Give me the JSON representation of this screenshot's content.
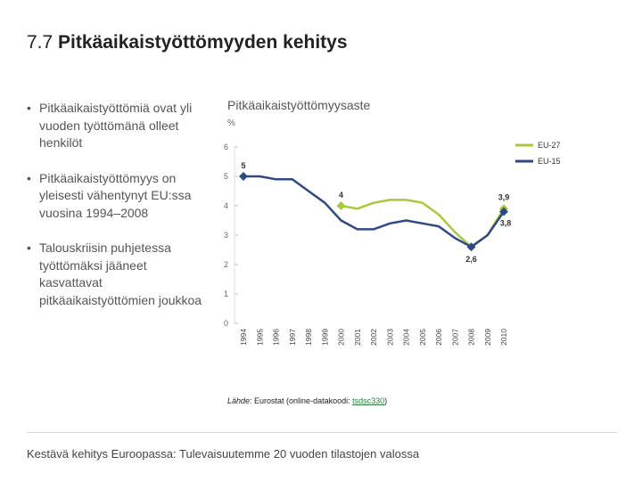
{
  "slide": {
    "title_number": "7.7",
    "title_text": "Pitkäaikaistyöttömyyden kehitys",
    "bullets": [
      "Pitkäaikaistyöttömiä ovat yli vuoden työttömänä olleet henkilöt",
      "Pitkäaikaistyöttömyys on yleisesti vähentynyt EU:ssa vuosina 1994–2008",
      "Talouskriisin puhjetessa työttömäksi jääneet kasvattavat pitkäaikaistyöttömien joukkoa"
    ],
    "footer": "Kestävä kehitys Euroopassa: Tulevaisuutemme 20 vuoden tilastojen valossa"
  },
  "source": {
    "label": "Lähde",
    "text": ": Eurostat (online-datakoodi: ",
    "code": "tsdsc330",
    "close": ")"
  },
  "colors": {
    "eu27": "#a8c83c",
    "eu15": "#2d4a86",
    "axis": "#cccccc",
    "text": "#555555"
  },
  "chart_data": {
    "type": "line",
    "title": "Pitkäaikaistyöttömyysaste",
    "ylabel": "%",
    "ylim": [
      0,
      6
    ],
    "yticks": [
      0,
      1,
      2,
      3,
      4,
      5,
      6
    ],
    "x": [
      "1994",
      "1995",
      "1996",
      "1997",
      "1998",
      "1999",
      "2000",
      "2001",
      "2002",
      "2003",
      "2004",
      "2005",
      "2006",
      "2007",
      "2008",
      "2009",
      "2010"
    ],
    "series": [
      {
        "name": "EU-27",
        "color": "#a8c83c",
        "values": [
          null,
          null,
          null,
          null,
          null,
          null,
          4.0,
          3.9,
          4.1,
          4.2,
          4.2,
          4.1,
          3.7,
          3.1,
          2.6,
          3.0,
          3.9
        ]
      },
      {
        "name": "EU-15",
        "color": "#2d4a86",
        "values": [
          5.0,
          5.0,
          4.9,
          4.9,
          4.5,
          4.1,
          3.5,
          3.2,
          3.2,
          3.4,
          3.5,
          3.4,
          3.3,
          2.9,
          2.6,
          3.0,
          3.8
        ]
      }
    ],
    "annotations": [
      {
        "series": "EU-15",
        "x": "1994",
        "text": "5"
      },
      {
        "series": "EU-27",
        "x": "2000",
        "text": "4"
      },
      {
        "series": "EU-27",
        "x": "2010",
        "text": "3,9"
      },
      {
        "series": "EU-15",
        "x": "2010",
        "text": "3,8"
      },
      {
        "series": "EU-15",
        "x": "2008",
        "text": "2,6"
      }
    ],
    "legend": [
      "EU-27",
      "EU-15"
    ],
    "legend_position": "top-right"
  }
}
